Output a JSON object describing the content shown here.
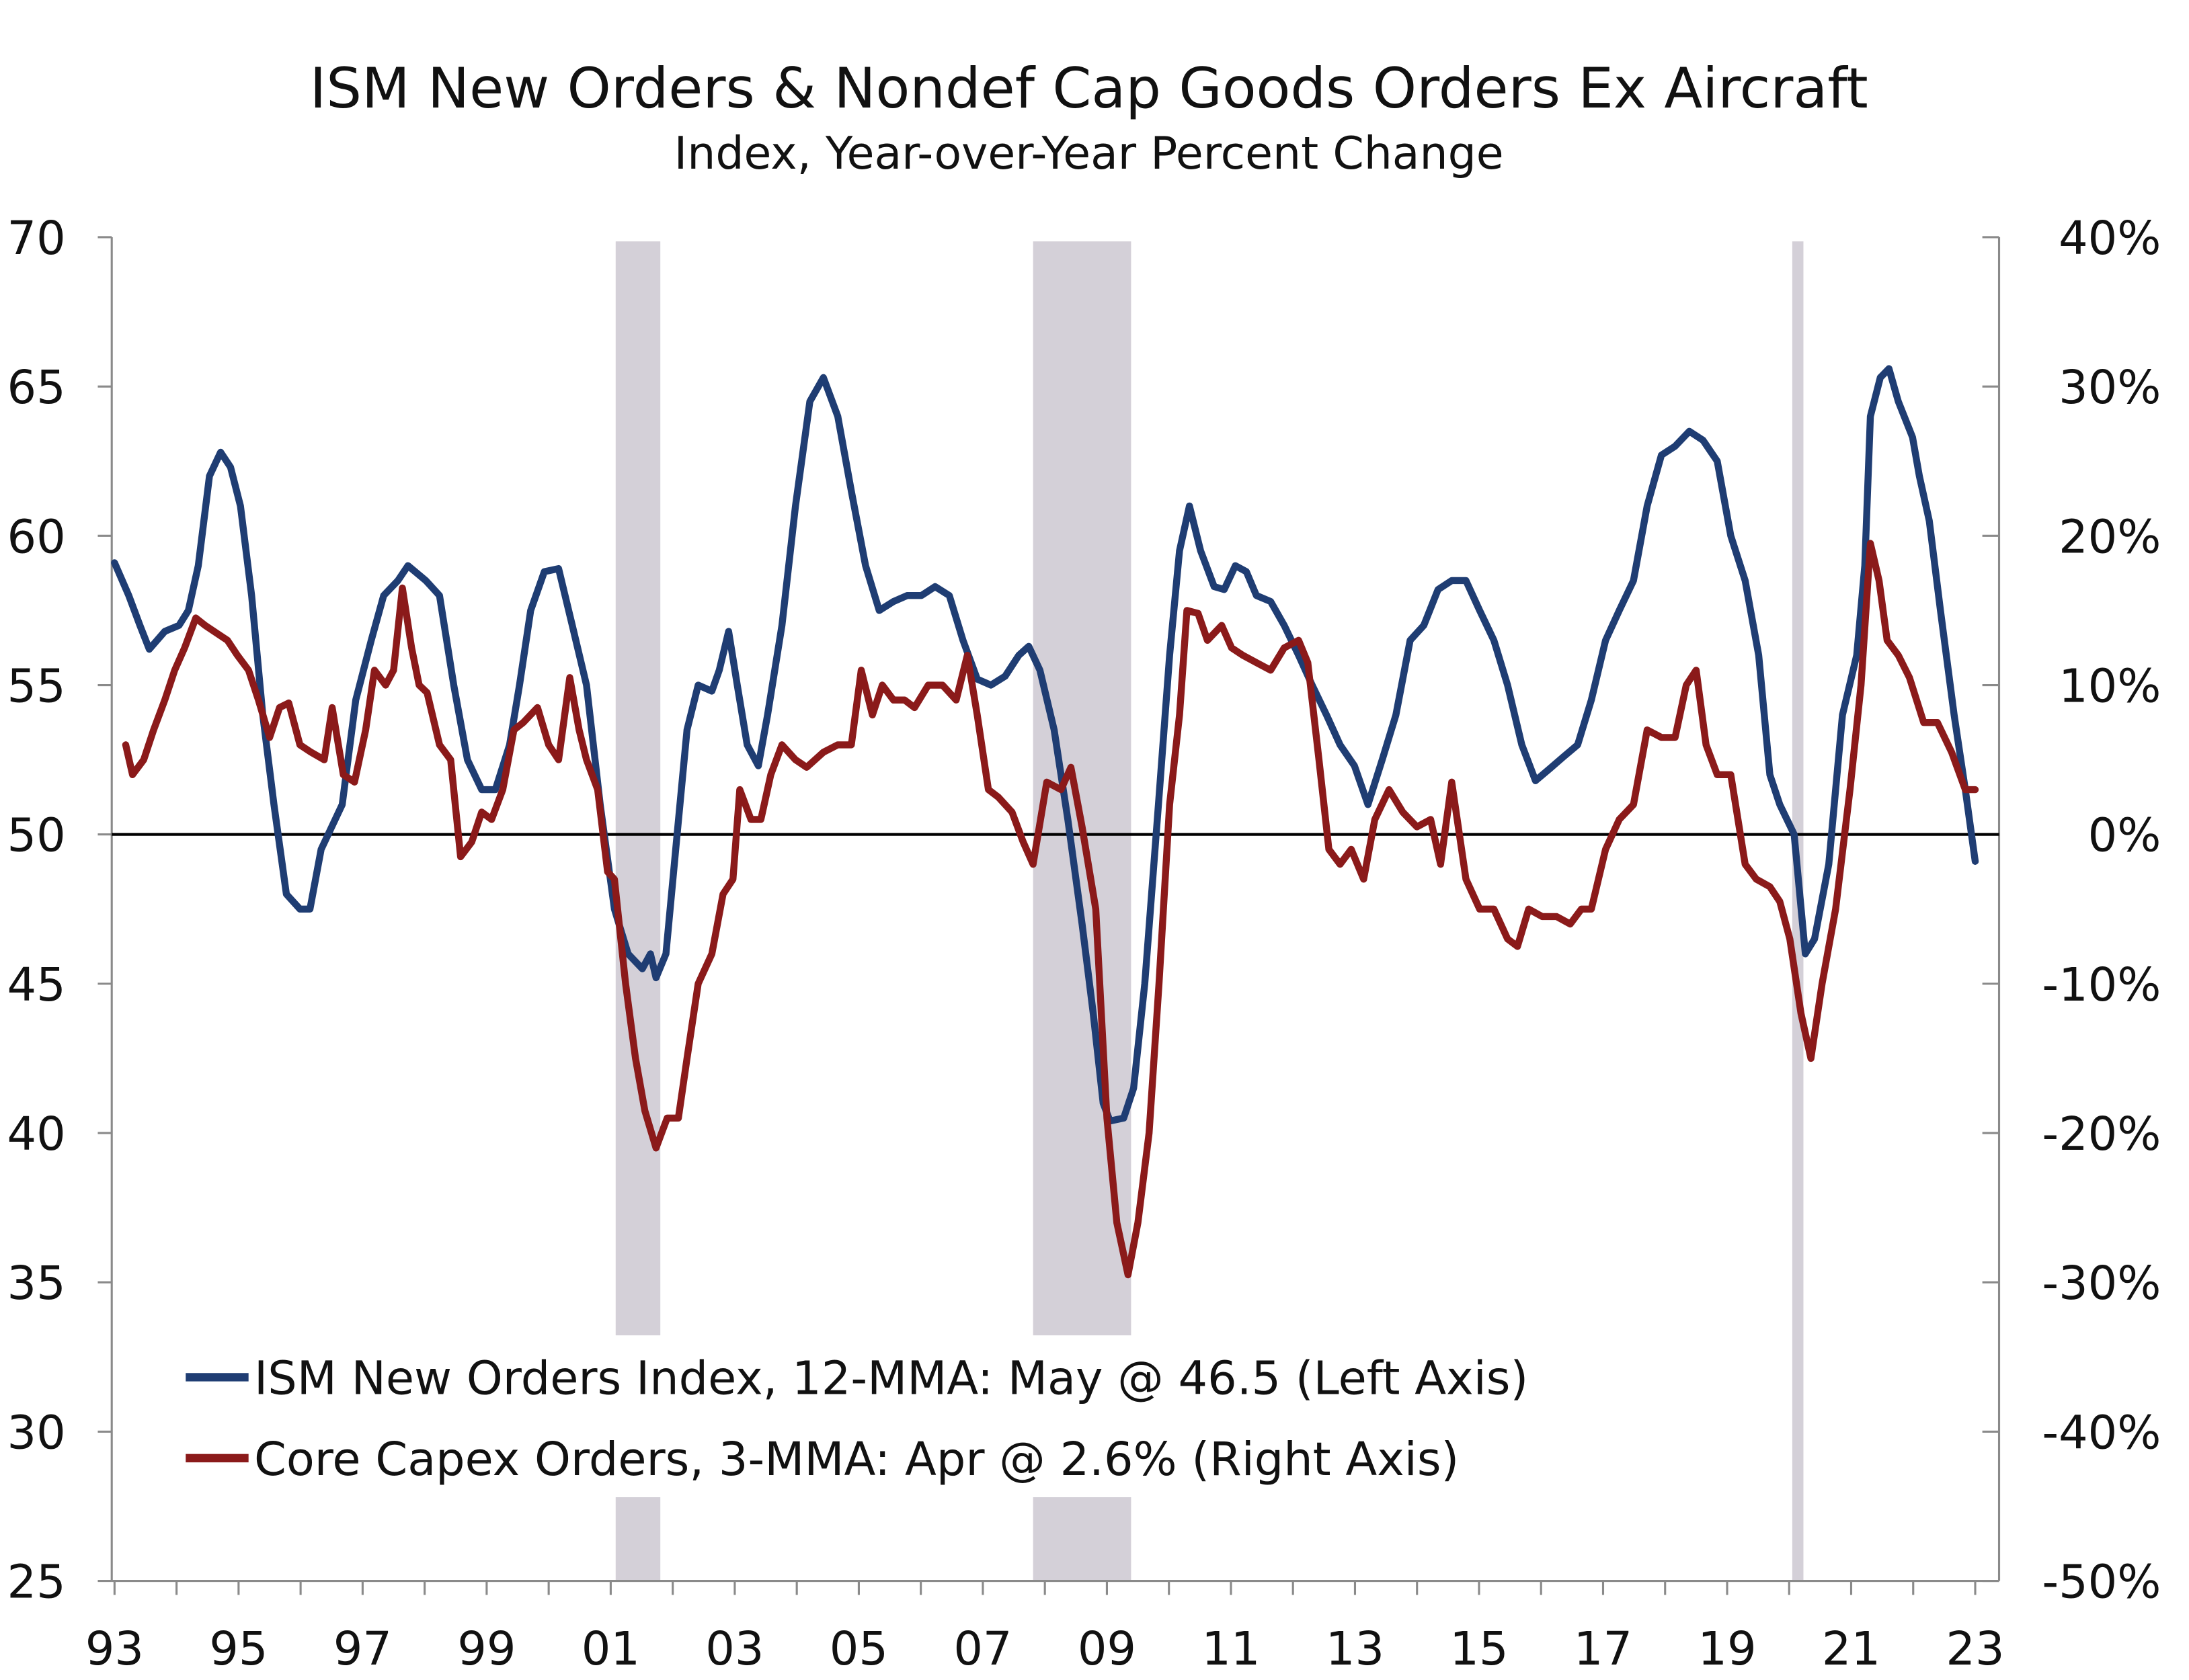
{
  "chart_data": {
    "type": "line",
    "title": "ISM New Orders & Nondef Cap Goods Orders Ex Aircraft",
    "subtitle": "Index, Year-over-Year Percent Change",
    "x_ticks": [
      "93",
      "95",
      "97",
      "99",
      "01",
      "03",
      "05",
      "07",
      "09",
      "11",
      "13",
      "15",
      "17",
      "19",
      "21",
      "23"
    ],
    "x_tick_years": [
      1993,
      1995,
      1997,
      1999,
      2001,
      2003,
      2005,
      2007,
      2009,
      2011,
      2013,
      2015,
      2017,
      2019,
      2021,
      2023
    ],
    "xlim": [
      1993,
      2023.4
    ],
    "y_left": {
      "ticks": [
        "70",
        "65",
        "60",
        "55",
        "50",
        "45",
        "40",
        "35",
        "30",
        "25"
      ],
      "values": [
        70,
        65,
        60,
        55,
        50,
        45,
        40,
        35,
        30,
        25
      ],
      "ylim": [
        25,
        70
      ]
    },
    "y_right": {
      "ticks": [
        "40%",
        "30%",
        "20%",
        "10%",
        "0%",
        "-10%",
        "-20%",
        "-30%",
        "-40%",
        "-50%"
      ],
      "values": [
        40,
        30,
        20,
        10,
        0,
        -10,
        -20,
        -30,
        -40,
        -50
      ],
      "ylim": [
        -50,
        40
      ]
    },
    "reference_line": {
      "axis": "left",
      "value": 50
    },
    "recessions": [
      [
        2001.08,
        2001.8
      ],
      [
        2007.81,
        2009.39
      ],
      [
        2020.05,
        2020.23
      ]
    ],
    "legend_position": "bottom-left",
    "series": [
      {
        "name": "ISM New Orders Index, 12-MMA: May @ 46.5 (Left Axis)",
        "axis": "left",
        "color": "#1f3d73",
        "x": [
          1993.0,
          1993.23,
          1993.41,
          1993.56,
          1993.81,
          1994.04,
          1994.19,
          1994.35,
          1994.53,
          1994.71,
          1994.87,
          1995.03,
          1995.21,
          1995.39,
          1995.57,
          1995.77,
          1995.99,
          1996.15,
          1996.33,
          1996.67,
          1996.89,
          1997.14,
          1997.34,
          1997.57,
          1997.73,
          1998.02,
          1998.24,
          1998.47,
          1998.69,
          1998.92,
          1999.14,
          1999.37,
          1999.53,
          1999.71,
          1999.93,
          2000.16,
          2000.38,
          2000.61,
          2000.83,
          2001.06,
          2001.28,
          2001.51,
          2001.64,
          2001.73,
          2001.89,
          2002.07,
          2002.23,
          2002.41,
          2002.63,
          2002.75,
          2002.9,
          2003.04,
          2003.2,
          2003.38,
          2003.53,
          2003.76,
          2003.98,
          2004.21,
          2004.43,
          2004.66,
          2004.88,
          2005.11,
          2005.33,
          2005.56,
          2005.78,
          2006.01,
          2006.23,
          2006.46,
          2006.68,
          2006.91,
          2007.13,
          2007.36,
          2007.58,
          2007.74,
          2007.92,
          2008.15,
          2008.37,
          2008.6,
          2008.78,
          2008.94,
          2009.05,
          2009.27,
          2009.43,
          2009.61,
          2009.83,
          2010.01,
          2010.17,
          2010.33,
          2010.51,
          2010.73,
          2010.89,
          2011.07,
          2011.25,
          2011.41,
          2011.64,
          2011.86,
          2012.09,
          2012.31,
          2012.54,
          2012.76,
          2012.99,
          2013.21,
          2013.44,
          2013.66,
          2013.89,
          2014.11,
          2014.34,
          2014.56,
          2014.79,
          2015.01,
          2015.24,
          2015.46,
          2015.69,
          2015.91,
          2016.14,
          2016.36,
          2016.59,
          2016.81,
          2017.04,
          2017.26,
          2017.49,
          2017.71,
          2017.94,
          2018.16,
          2018.39,
          2018.61,
          2018.84,
          2019.06,
          2019.29,
          2019.51,
          2019.69,
          2019.85,
          2020.08,
          2020.26,
          2020.41,
          2020.64,
          2020.86,
          2021.09,
          2021.22,
          2021.31,
          2021.47,
          2021.61,
          2021.76,
          2021.99,
          2022.1,
          2022.26,
          2022.44,
          2022.66,
          2022.84,
          2023.0
        ],
        "values": [
          59.1,
          58,
          57,
          56.2,
          56.8,
          57,
          57.5,
          59,
          62,
          62.8,
          62.3,
          61,
          58,
          54,
          51,
          48,
          47.5,
          47.5,
          49.5,
          51,
          54.5,
          56.5,
          58,
          58.5,
          59,
          58.5,
          58,
          55,
          52.5,
          51.5,
          51.5,
          53,
          55,
          57.5,
          58.8,
          58.9,
          57,
          55,
          51,
          47.5,
          46,
          45.5,
          46,
          45.2,
          46,
          50,
          53.5,
          55,
          54.8,
          55.5,
          56.8,
          55,
          53,
          52.3,
          54,
          57,
          61,
          64.5,
          65.3,
          64,
          61.5,
          59,
          57.5,
          57.8,
          58,
          58,
          58.3,
          58,
          56.5,
          55.2,
          55,
          55.3,
          56,
          56.3,
          55.5,
          53.5,
          50.5,
          47,
          44,
          41,
          40.4,
          40.5,
          41.5,
          45,
          51,
          56,
          59.5,
          61,
          59.5,
          58.3,
          58.2,
          59,
          58.8,
          58,
          57.8,
          57,
          56,
          55,
          54,
          53,
          52.3,
          51,
          52.5,
          54,
          56.5,
          57,
          58.2,
          58.5,
          58.5,
          57.5,
          56.5,
          55,
          53,
          51.8,
          52.2,
          52.6,
          53,
          54.5,
          56.5,
          57.5,
          58.5,
          61,
          62.7,
          63,
          63.5,
          63.2,
          62.5,
          60,
          58.5,
          56,
          52,
          51,
          50,
          46,
          46.5,
          49,
          54,
          56,
          59,
          64,
          65.3,
          65.6,
          64.5,
          63.3,
          62,
          60.5,
          57.5,
          54,
          51.5,
          49.1
        ]
      },
      {
        "name": "Core Capex Orders, 3-MMA: Apr @ 2.6% (Right Axis)",
        "axis": "right",
        "color": "#8b1a1a",
        "x": [
          1993.18,
          1993.29,
          1993.47,
          1993.63,
          1993.81,
          1993.97,
          1994.13,
          1994.31,
          1994.46,
          1994.64,
          1994.82,
          1994.98,
          1995.16,
          1995.32,
          1995.5,
          1995.66,
          1995.81,
          1995.99,
          1996.17,
          1996.38,
          1996.51,
          1996.69,
          1996.87,
          1997.05,
          1997.19,
          1997.37,
          1997.5,
          1997.64,
          1997.79,
          1997.91,
          1998.04,
          1998.24,
          1998.42,
          1998.58,
          1998.76,
          1998.92,
          1999.08,
          1999.26,
          1999.44,
          1999.59,
          1999.82,
          2000.0,
          2000.16,
          2000.34,
          2000.49,
          2000.61,
          2000.79,
          2000.95,
          2001.06,
          2001.24,
          2001.4,
          2001.55,
          2001.73,
          2001.91,
          2002.09,
          2002.23,
          2002.41,
          2002.63,
          2002.81,
          2002.97,
          2003.08,
          2003.26,
          2003.42,
          2003.58,
          2003.76,
          2003.98,
          2004.16,
          2004.43,
          2004.66,
          2004.88,
          2005.04,
          2005.22,
          2005.38,
          2005.56,
          2005.74,
          2005.9,
          2006.12,
          2006.35,
          2006.57,
          2006.75,
          2006.91,
          2007.09,
          2007.25,
          2007.47,
          2007.65,
          2007.81,
          2008.03,
          2008.26,
          2008.42,
          2008.6,
          2008.82,
          2009.0,
          2009.16,
          2009.34,
          2009.5,
          2009.68,
          2009.84,
          2010.01,
          2010.17,
          2010.29,
          2010.47,
          2010.62,
          2010.85,
          2011.01,
          2011.19,
          2011.41,
          2011.64,
          2011.86,
          2012.09,
          2012.24,
          2012.42,
          2012.58,
          2012.76,
          2012.94,
          2013.14,
          2013.32,
          2013.55,
          2013.77,
          2014.0,
          2014.22,
          2014.38,
          2014.56,
          2014.79,
          2015.01,
          2015.24,
          2015.46,
          2015.62,
          2015.8,
          2016.02,
          2016.25,
          2016.47,
          2016.65,
          2016.81,
          2017.04,
          2017.26,
          2017.49,
          2017.71,
          2017.94,
          2018.16,
          2018.34,
          2018.5,
          2018.66,
          2018.84,
          2019.06,
          2019.29,
          2019.47,
          2019.69,
          2019.85,
          2020.01,
          2020.19,
          2020.35,
          2020.53,
          2020.75,
          2020.98,
          2021.16,
          2021.31,
          2021.45,
          2021.58,
          2021.76,
          2021.94,
          2022.17,
          2022.39,
          2022.62,
          2022.84,
          2023.0
        ],
        "values": [
          6,
          4,
          5,
          7,
          9,
          11,
          12.5,
          14.5,
          14,
          13.5,
          13,
          12,
          11,
          9,
          6.5,
          8.5,
          8.8,
          6,
          5.5,
          5,
          8.5,
          4,
          3.5,
          7,
          11,
          10,
          11,
          16.5,
          12.5,
          10,
          9.5,
          6,
          5,
          -1.5,
          -0.5,
          1.5,
          1,
          3,
          7,
          7.5,
          8.5,
          6,
          5,
          10.5,
          7,
          5,
          3,
          -2.5,
          -3,
          -10,
          -15,
          -18.5,
          -21,
          -19,
          -19,
          -15,
          -10,
          -8,
          -4,
          -3,
          3,
          1,
          1,
          4,
          6,
          5,
          4.5,
          5.5,
          6,
          6,
          11,
          8,
          10,
          9,
          9,
          8.5,
          10,
          10,
          9,
          12,
          8,
          3,
          2.5,
          1.5,
          -0.5,
          -2,
          3.5,
          3,
          4.5,
          0.5,
          -5,
          -19,
          -26,
          -29.5,
          -26,
          -20,
          -10,
          2,
          8,
          15,
          14.8,
          13,
          14,
          12.5,
          12,
          11.5,
          11,
          12.5,
          13,
          11.5,
          5,
          -1,
          -2,
          -1,
          -3,
          1,
          3,
          1.5,
          0.5,
          1,
          -2,
          3.5,
          -3,
          -5,
          -5,
          -7,
          -7.5,
          -5,
          -5.5,
          -5.5,
          -6,
          -5,
          -5,
          -1,
          1,
          2,
          7,
          6.5,
          6.5,
          10,
          11,
          6,
          4,
          4,
          -2,
          -3,
          -3.5,
          -4.5,
          -7,
          -12,
          -15,
          -10,
          -5,
          3,
          10,
          19.5,
          17,
          13,
          12,
          10.5,
          7.5,
          7.5,
          5.5,
          3,
          3
        ]
      }
    ]
  }
}
